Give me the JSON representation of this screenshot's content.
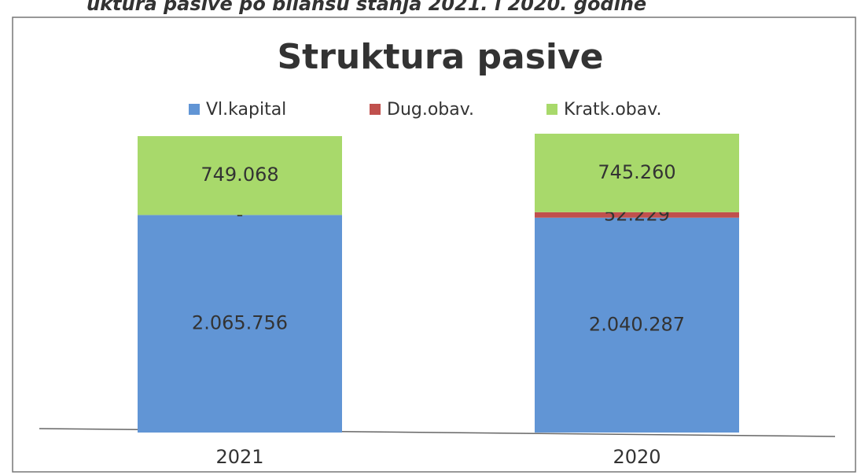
{
  "caption": "uktura pasive po bilansu stanja 2021. i 2020. godine",
  "chart_data": {
    "type": "stacked_bar",
    "title": "Struktura pasive",
    "categories": [
      "2021",
      "2020"
    ],
    "series": [
      {
        "name": "Vl.kapital",
        "color": "#6195d5",
        "values": [
          2065756,
          2040287
        ],
        "value_labels": [
          "2.065.756",
          "2.040.287"
        ]
      },
      {
        "name": "Dug.obav.",
        "color": "#c0504d",
        "values": [
          0,
          52229
        ],
        "value_labels": [
          "-",
          "52.229"
        ]
      },
      {
        "name": "Kratk.obav.",
        "color": "#a8d96b",
        "values": [
          749068,
          745260
        ],
        "value_labels": [
          "749.068",
          "745.260"
        ]
      }
    ],
    "legend": "top"
  }
}
